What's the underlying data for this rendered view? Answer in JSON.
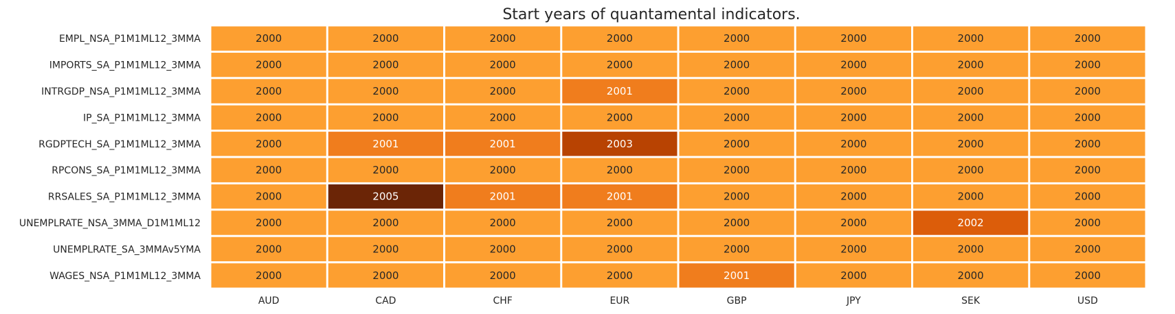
{
  "chart_data": {
    "type": "heatmap",
    "title": "Start years of quantamental indicators.",
    "xlabel": "",
    "ylabel": "",
    "columns": [
      "AUD",
      "CAD",
      "CHF",
      "EUR",
      "GBP",
      "JPY",
      "SEK",
      "USD"
    ],
    "rows": [
      "EMPL_NSA_P1M1ML12_3MMA",
      "IMPORTS_SA_P1M1ML12_3MMA",
      "INTRGDP_NSA_P1M1ML12_3MMA",
      "IP_SA_P1M1ML12_3MMA",
      "RGDPTECH_SA_P1M1ML12_3MMA",
      "RPCONS_SA_P1M1ML12_3MMA",
      "RRSALES_SA_P1M1ML12_3MMA",
      "UNEMPLRATE_NSA_3MMA_D1M1ML12",
      "UNEMPLRATE_SA_3MMAv5YMA",
      "WAGES_NSA_P1M1ML12_3MMA"
    ],
    "values": [
      [
        2000,
        2000,
        2000,
        2000,
        2000,
        2000,
        2000,
        2000
      ],
      [
        2000,
        2000,
        2000,
        2000,
        2000,
        2000,
        2000,
        2000
      ],
      [
        2000,
        2000,
        2000,
        2001,
        2000,
        2000,
        2000,
        2000
      ],
      [
        2000,
        2000,
        2000,
        2000,
        2000,
        2000,
        2000,
        2000
      ],
      [
        2000,
        2001,
        2001,
        2003,
        2000,
        2000,
        2000,
        2000
      ],
      [
        2000,
        2000,
        2000,
        2000,
        2000,
        2000,
        2000,
        2000
      ],
      [
        2000,
        2005,
        2001,
        2001,
        2000,
        2000,
        2000,
        2000
      ],
      [
        2000,
        2000,
        2000,
        2000,
        2000,
        2000,
        2002,
        2000
      ],
      [
        2000,
        2000,
        2000,
        2000,
        2000,
        2000,
        2000,
        2000
      ],
      [
        2000,
        2000,
        2000,
        2000,
        2001,
        2000,
        2000,
        2000
      ]
    ],
    "colorbar": false,
    "grid": false,
    "colors": {
      "2000": "#fd9f30",
      "2001": "#f07d1d",
      "2002": "#dc5d0a",
      "2003": "#b84302",
      "2005": "#6b2506",
      "text_dark": "#262626",
      "text_light": "#ffffff",
      "cell_border": "#ffffff"
    }
  }
}
